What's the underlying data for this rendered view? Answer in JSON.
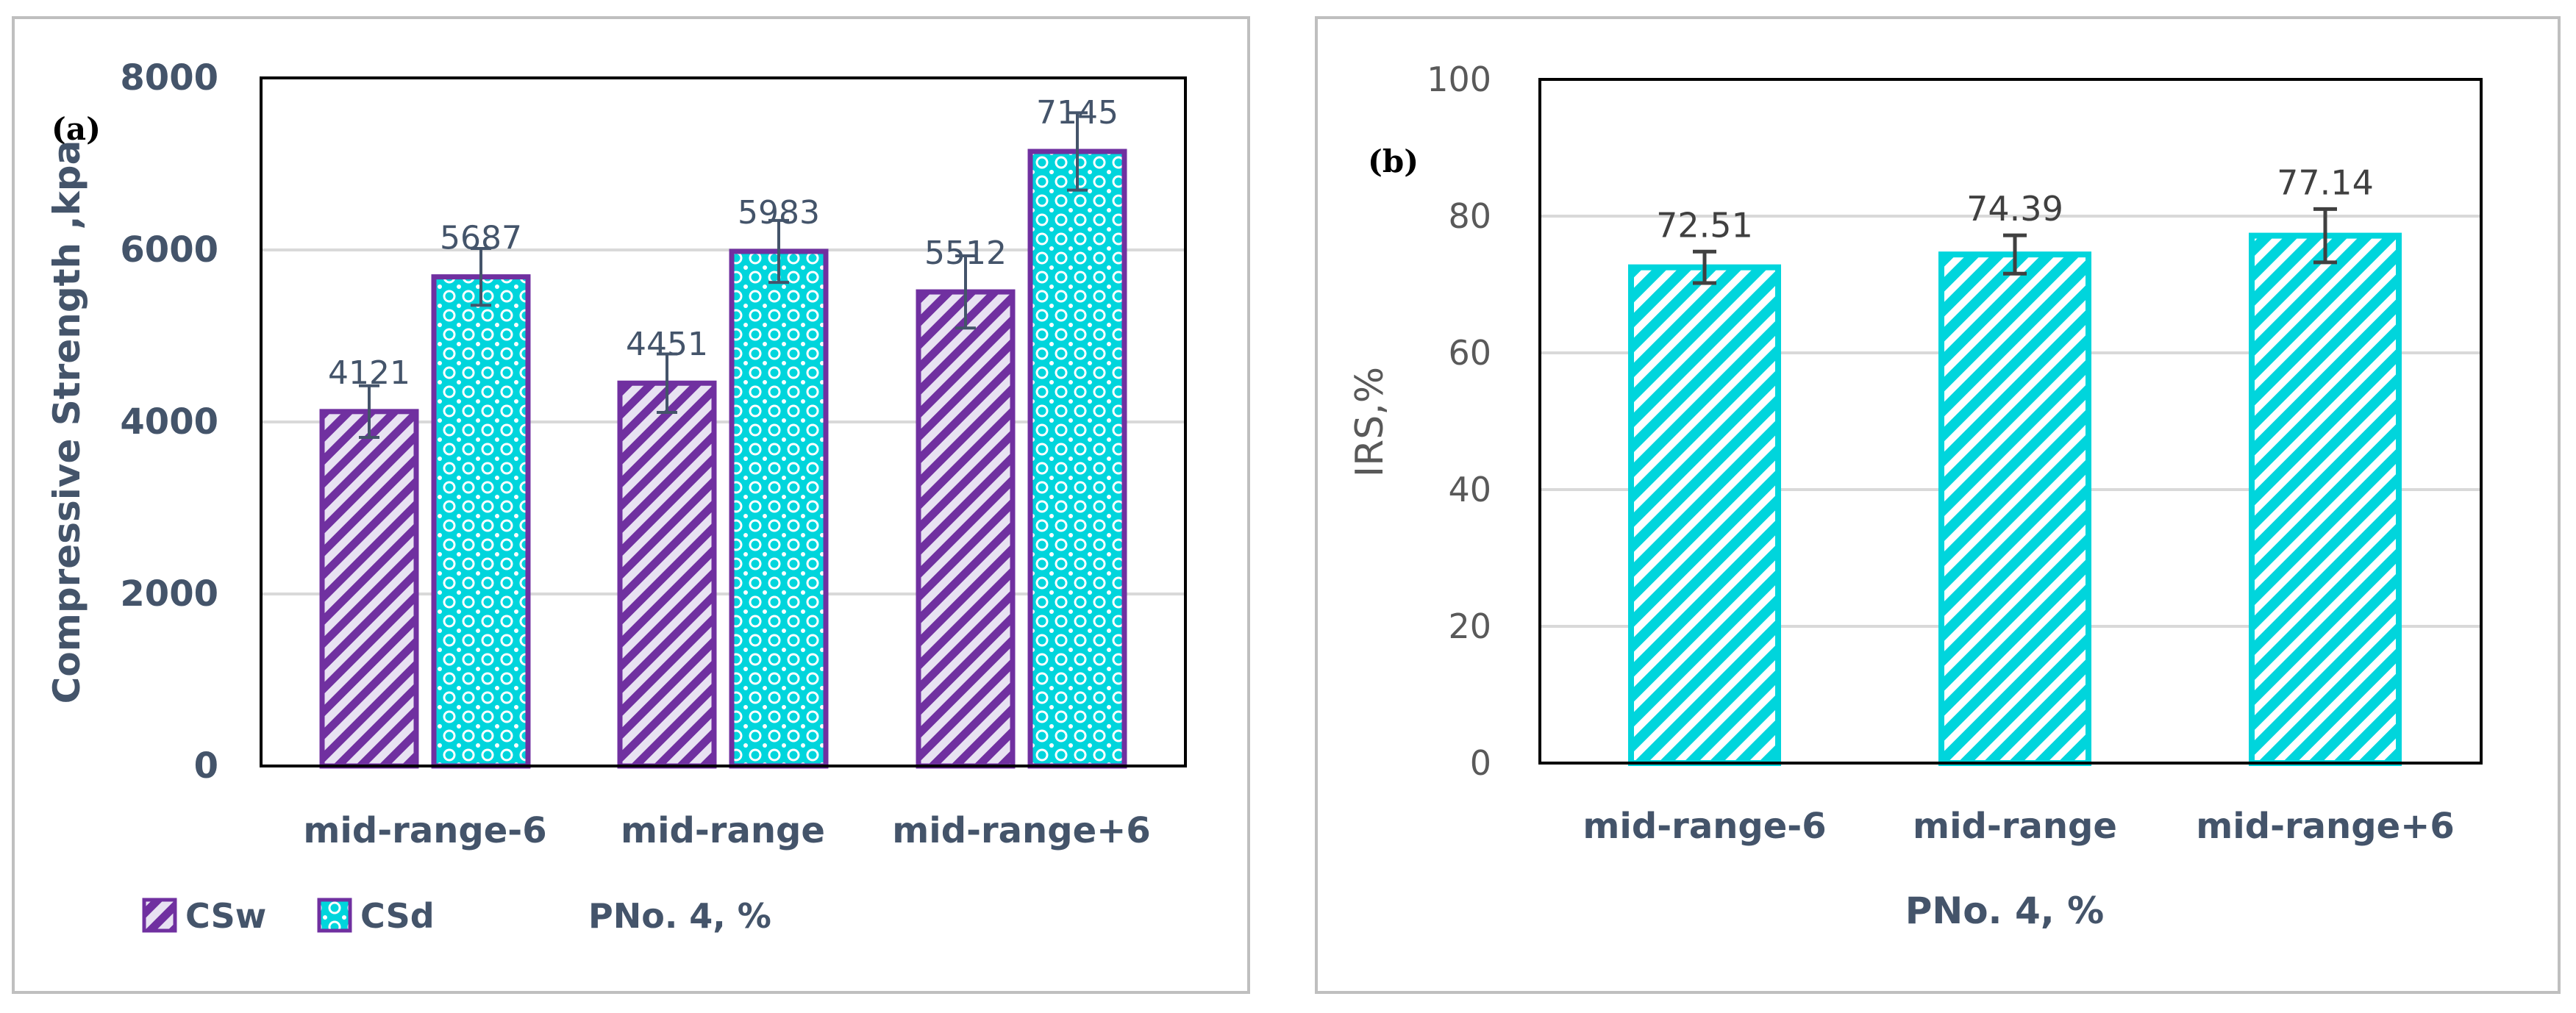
{
  "chart_data": [
    {
      "panel_label": "(a)",
      "type": "bar",
      "categories": [
        "mid-range-6",
        "mid-range",
        "mid-range+6"
      ],
      "series": [
        {
          "name": "CSw",
          "values": [
            4121,
            4451,
            5512
          ],
          "errors": [
            300,
            340,
            420
          ],
          "color": "#7030a0",
          "fill": "#e6e0f0",
          "pattern": "diagonal-stripes"
        },
        {
          "name": "CSd",
          "values": [
            5687,
            5983,
            7145
          ],
          "errors": [
            330,
            360,
            450
          ],
          "color": "#7030a0",
          "fill": "#00d5dc",
          "pattern": "dots"
        }
      ],
      "data_labels": {
        "CSw": [
          "4121",
          "4451",
          "5512"
        ],
        "CSd": [
          "5687",
          "5983",
          "7145"
        ]
      },
      "xlabel": "PNo. 4, %",
      "ylabel": "Compressive Strength ,kpa",
      "ylim": [
        0,
        8000
      ],
      "yticks": [
        0,
        2000,
        4000,
        6000,
        8000
      ],
      "ytick_labels": [
        "0",
        "2000",
        "4000",
        "6000",
        "8000"
      ],
      "grid": true,
      "legend_position": "bottom-left"
    },
    {
      "panel_label": "(b)",
      "type": "bar",
      "categories": [
        "mid-range-6",
        "mid-range",
        "mid-range+6"
      ],
      "series": [
        {
          "name": "IRS",
          "values": [
            72.51,
            74.39,
            77.14
          ],
          "errors": [
            2.3,
            2.8,
            3.9
          ],
          "color": "#00d5dc",
          "fill": "#00d5dc",
          "pattern": "diagonal-stripes"
        }
      ],
      "data_labels": {
        "IRS": [
          "72.51",
          "74.39",
          "77.14"
        ]
      },
      "xlabel": "PNo. 4, %",
      "ylabel": "IRS,%",
      "ylim": [
        0,
        100
      ],
      "yticks": [
        0,
        20,
        40,
        60,
        80,
        100
      ],
      "ytick_labels": [
        "0",
        "20",
        "40",
        "60",
        "80",
        "100"
      ],
      "grid": true,
      "legend_position": "none"
    }
  ],
  "colors": {
    "axis_text": "#44546a",
    "tick_text": "#595959",
    "grid": "#d9d9d9",
    "frame": "#bfbfbf",
    "purple": "#7030a0",
    "cyan": "#00d5dc",
    "lavender": "#e6e0f0"
  }
}
